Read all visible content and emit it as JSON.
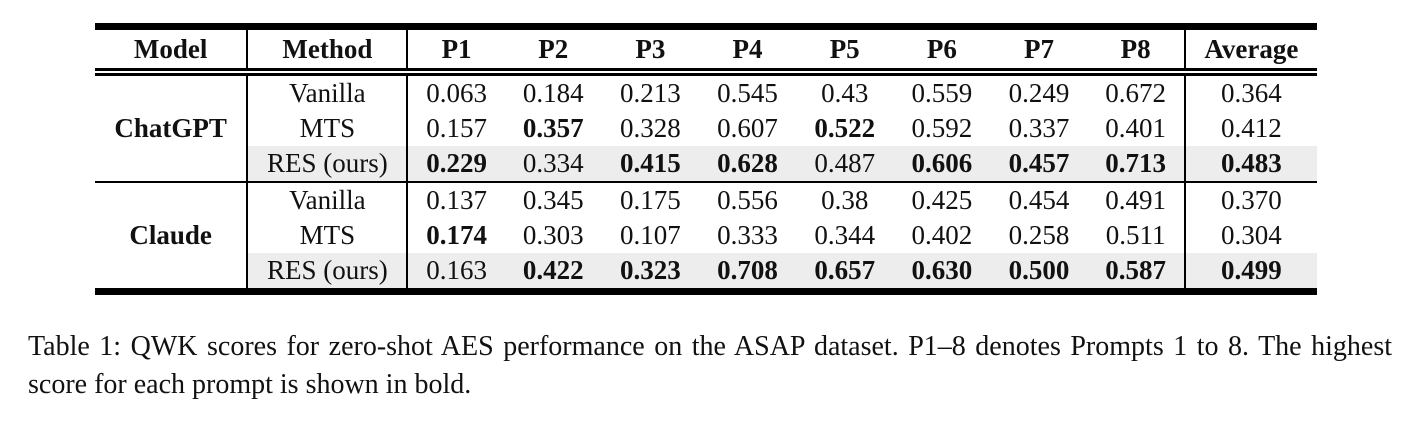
{
  "colors": {
    "highlight_row": "#ededed",
    "rule": "#000000",
    "background": "#ffffff",
    "text": "#111111"
  },
  "chart_data": {
    "type": "table",
    "title": "Table 1",
    "columns": [
      "Model",
      "Method",
      "P1",
      "P2",
      "P3",
      "P4",
      "P5",
      "P6",
      "P7",
      "P8",
      "Average"
    ],
    "groups": [
      {
        "model": "ChatGPT",
        "rows": [
          {
            "method": "Vanilla",
            "values": [
              "0.063",
              "0.184",
              "0.213",
              "0.545",
              "0.43",
              "0.559",
              "0.249",
              "0.672",
              "0.364"
            ],
            "bold": [],
            "highlight": false
          },
          {
            "method": "MTS",
            "values": [
              "0.157",
              "0.357",
              "0.328",
              "0.607",
              "0.522",
              "0.592",
              "0.337",
              "0.401",
              "0.412"
            ],
            "bold": [
              1,
              4
            ],
            "highlight": false
          },
          {
            "method": "RES (ours)",
            "values": [
              "0.229",
              "0.334",
              "0.415",
              "0.628",
              "0.487",
              "0.606",
              "0.457",
              "0.713",
              "0.483"
            ],
            "bold": [
              0,
              2,
              3,
              5,
              6,
              7,
              8
            ],
            "highlight": true
          }
        ]
      },
      {
        "model": "Claude",
        "rows": [
          {
            "method": "Vanilla",
            "values": [
              "0.137",
              "0.345",
              "0.175",
              "0.556",
              "0.38",
              "0.425",
              "0.454",
              "0.491",
              "0.370"
            ],
            "bold": [],
            "highlight": false
          },
          {
            "method": "MTS",
            "values": [
              "0.174",
              "0.303",
              "0.107",
              "0.333",
              "0.344",
              "0.402",
              "0.258",
              "0.511",
              "0.304"
            ],
            "bold": [
              0
            ],
            "highlight": false
          },
          {
            "method": "RES (ours)",
            "values": [
              "0.163",
              "0.422",
              "0.323",
              "0.708",
              "0.657",
              "0.630",
              "0.500",
              "0.587",
              "0.499"
            ],
            "bold": [
              1,
              2,
              3,
              4,
              5,
              6,
              7,
              8
            ],
            "highlight": true
          }
        ]
      }
    ]
  },
  "caption": {
    "text": "Table 1: QWK scores for zero-shot AES performance on the ASAP dataset. P1–8 denotes Prompts 1 to 8. The highest score for each prompt is shown in bold."
  }
}
